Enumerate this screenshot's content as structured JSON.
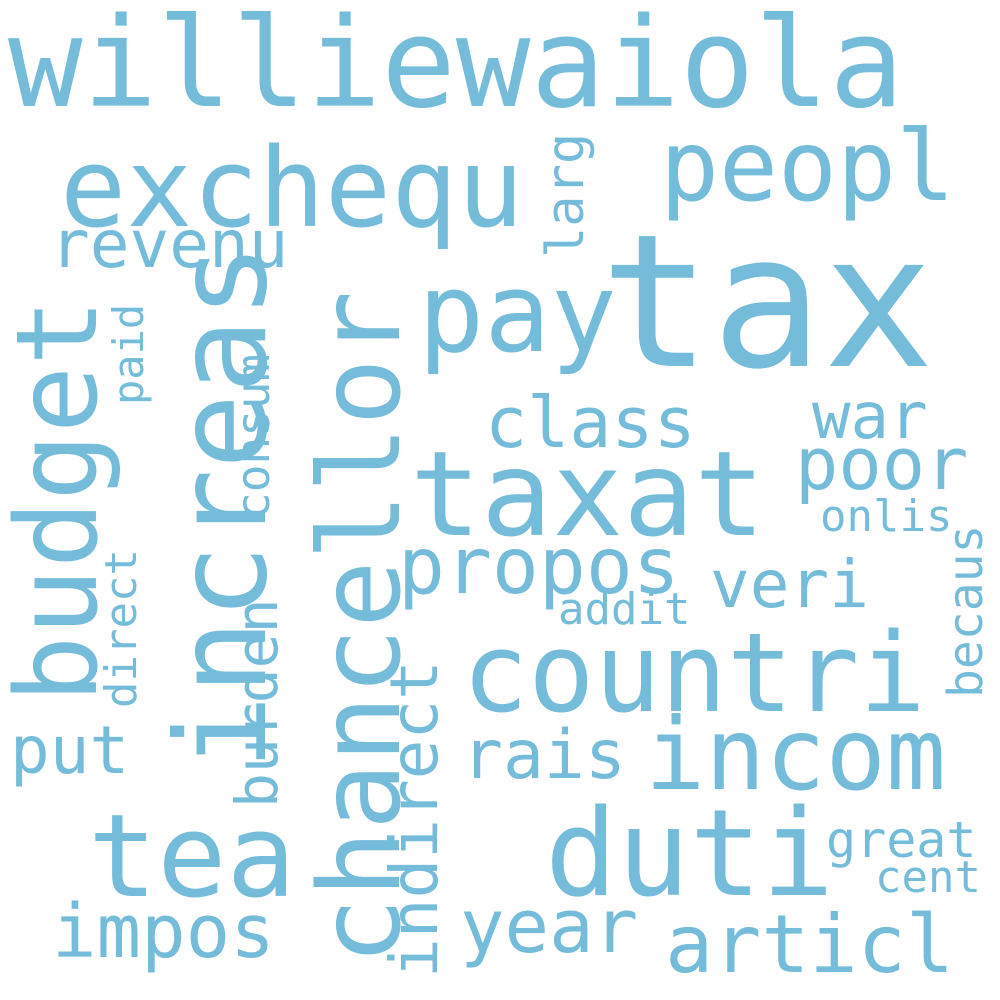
{
  "colors": {
    "word": "#74bcd9",
    "background": "#ffffff"
  },
  "words": [
    {
      "id": "williewaiola",
      "text": "williewaiola"
    },
    {
      "id": "tax",
      "text": "tax"
    },
    {
      "id": "exchequ",
      "text": "exchequ"
    },
    {
      "id": "peopl",
      "text": "peopl"
    },
    {
      "id": "larg",
      "text": "larg"
    },
    {
      "id": "revenu",
      "text": "revenu"
    },
    {
      "id": "pay",
      "text": "pay"
    },
    {
      "id": "budget",
      "text": "budget"
    },
    {
      "id": "increas",
      "text": "increas"
    },
    {
      "id": "chancellor",
      "text": "chancellor"
    },
    {
      "id": "paid",
      "text": "paid"
    },
    {
      "id": "consum",
      "text": "consum"
    },
    {
      "id": "class",
      "text": "class"
    },
    {
      "id": "war",
      "text": "war"
    },
    {
      "id": "poor",
      "text": "poor"
    },
    {
      "id": "taxat",
      "text": "taxat"
    },
    {
      "id": "onlis",
      "text": "onlis"
    },
    {
      "id": "direct",
      "text": "direct"
    },
    {
      "id": "burden",
      "text": "burden"
    },
    {
      "id": "propos",
      "text": "propos"
    },
    {
      "id": "veri",
      "text": "veri"
    },
    {
      "id": "becaus",
      "text": "becaus"
    },
    {
      "id": "addit",
      "text": "addit"
    },
    {
      "id": "countri",
      "text": "countri"
    },
    {
      "id": "indirect",
      "text": "indirect"
    },
    {
      "id": "put",
      "text": "put"
    },
    {
      "id": "rais",
      "text": "rais"
    },
    {
      "id": "incom",
      "text": "incom"
    },
    {
      "id": "tea",
      "text": "tea"
    },
    {
      "id": "duti",
      "text": "duti"
    },
    {
      "id": "great",
      "text": "great"
    },
    {
      "id": "cent",
      "text": "cent"
    },
    {
      "id": "impos",
      "text": "impos"
    },
    {
      "id": "year",
      "text": "year"
    },
    {
      "id": "articl",
      "text": "articl"
    }
  ]
}
